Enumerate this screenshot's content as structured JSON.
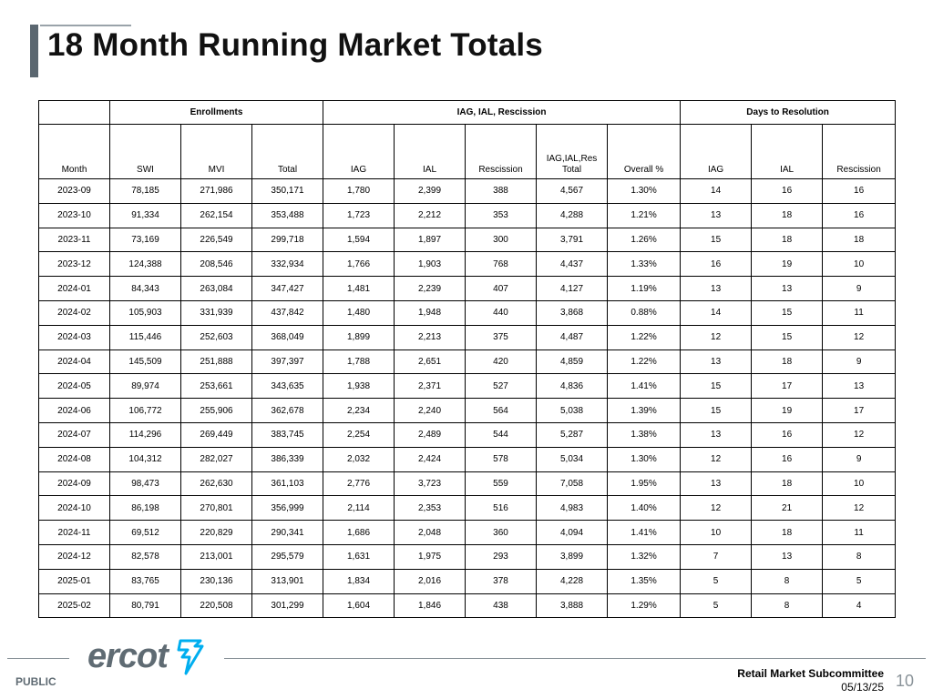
{
  "slide": {
    "title": "18 Month Running Market Totals",
    "footer": {
      "public": "PUBLIC",
      "logo": "ercot",
      "committee": "Retail Market Subcommittee",
      "date": "05/13/25",
      "page": "10"
    }
  },
  "table": {
    "groups": [
      {
        "label": "",
        "span": 1
      },
      {
        "label": "Enrollments",
        "span": 3
      },
      {
        "label": "IAG, IAL, Rescission",
        "span": 5
      },
      {
        "label": "Days to Resolution",
        "span": 3
      }
    ],
    "columns": [
      "Month",
      "SWI",
      "MVI",
      "Total",
      "IAG",
      "IAL",
      "Rescission",
      "IAG,IAL,Res Total",
      "Overall %",
      "IAG",
      "IAL",
      "Rescission"
    ],
    "rows": [
      [
        "2023-09",
        "78,185",
        "271,986",
        "350,171",
        "1,780",
        "2,399",
        "388",
        "4,567",
        "1.30%",
        "14",
        "16",
        "16"
      ],
      [
        "2023-10",
        "91,334",
        "262,154",
        "353,488",
        "1,723",
        "2,212",
        "353",
        "4,288",
        "1.21%",
        "13",
        "18",
        "16"
      ],
      [
        "2023-11",
        "73,169",
        "226,549",
        "299,718",
        "1,594",
        "1,897",
        "300",
        "3,791",
        "1.26%",
        "15",
        "18",
        "18"
      ],
      [
        "2023-12",
        "124,388",
        "208,546",
        "332,934",
        "1,766",
        "1,903",
        "768",
        "4,437",
        "1.33%",
        "16",
        "19",
        "10"
      ],
      [
        "2024-01",
        "84,343",
        "263,084",
        "347,427",
        "1,481",
        "2,239",
        "407",
        "4,127",
        "1.19%",
        "13",
        "13",
        "9"
      ],
      [
        "2024-02",
        "105,903",
        "331,939",
        "437,842",
        "1,480",
        "1,948",
        "440",
        "3,868",
        "0.88%",
        "14",
        "15",
        "11"
      ],
      [
        "2024-03",
        "115,446",
        "252,603",
        "368,049",
        "1,899",
        "2,213",
        "375",
        "4,487",
        "1.22%",
        "12",
        "15",
        "12"
      ],
      [
        "2024-04",
        "145,509",
        "251,888",
        "397,397",
        "1,788",
        "2,651",
        "420",
        "4,859",
        "1.22%",
        "13",
        "18",
        "9"
      ],
      [
        "2024-05",
        "89,974",
        "253,661",
        "343,635",
        "1,938",
        "2,371",
        "527",
        "4,836",
        "1.41%",
        "15",
        "17",
        "13"
      ],
      [
        "2024-06",
        "106,772",
        "255,906",
        "362,678",
        "2,234",
        "2,240",
        "564",
        "5,038",
        "1.39%",
        "15",
        "19",
        "17"
      ],
      [
        "2024-07",
        "114,296",
        "269,449",
        "383,745",
        "2,254",
        "2,489",
        "544",
        "5,287",
        "1.38%",
        "13",
        "16",
        "12"
      ],
      [
        "2024-08",
        "104,312",
        "282,027",
        "386,339",
        "2,032",
        "2,424",
        "578",
        "5,034",
        "1.30%",
        "12",
        "16",
        "9"
      ],
      [
        "2024-09",
        "98,473",
        "262,630",
        "361,103",
        "2,776",
        "3,723",
        "559",
        "7,058",
        "1.95%",
        "13",
        "18",
        "10"
      ],
      [
        "2024-10",
        "86,198",
        "270,801",
        "356,999",
        "2,114",
        "2,353",
        "516",
        "4,983",
        "1.40%",
        "12",
        "21",
        "12"
      ],
      [
        "2024-11",
        "69,512",
        "220,829",
        "290,341",
        "1,686",
        "2,048",
        "360",
        "4,094",
        "1.41%",
        "10",
        "18",
        "11"
      ],
      [
        "2024-12",
        "82,578",
        "213,001",
        "295,579",
        "1,631",
        "1,975",
        "293",
        "3,899",
        "1.32%",
        "7",
        "13",
        "8"
      ],
      [
        "2025-01",
        "83,765",
        "230,136",
        "313,901",
        "1,834",
        "2,016",
        "378",
        "4,228",
        "1.35%",
        "5",
        "8",
        "5"
      ],
      [
        "2025-02",
        "80,791",
        "220,508",
        "301,299",
        "1,604",
        "1,846",
        "438",
        "3,888",
        "1.29%",
        "5",
        "8",
        "4"
      ]
    ]
  },
  "colors": {
    "accent": "#5b6770",
    "logo": "#5f6b73",
    "bolt": "#00aeef"
  }
}
